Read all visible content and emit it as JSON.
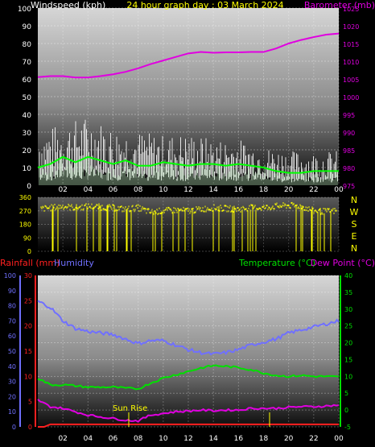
{
  "chart_data": [
    {
      "type": "line",
      "title": "24 hour graph day : 03 March 2024",
      "left_axis_label": "Windspeed (kph)",
      "right_axis_label": "Barometer (mb)",
      "left_ticks": [
        "0",
        "10",
        "20",
        "30",
        "40",
        "50",
        "60",
        "70",
        "80",
        "90",
        "100"
      ],
      "right_ticks": [
        "975",
        "980",
        "985",
        "990",
        "995",
        "1000",
        "1005",
        "1010",
        "1015",
        "1020",
        "1025"
      ],
      "x_ticks": [
        "02",
        "04",
        "06",
        "08",
        "10",
        "12",
        "14",
        "16",
        "18",
        "20",
        "22",
        "00"
      ],
      "ylim_left": [
        0,
        100
      ],
      "ylim_right": [
        975,
        1025
      ],
      "series": [
        {
          "name": "Barometer (mb)",
          "color": "#e000e0",
          "x": [
            0,
            1,
            2,
            3,
            4,
            5,
            6,
            7,
            8,
            9,
            10,
            11,
            12,
            13,
            14,
            15,
            16,
            17,
            18,
            19,
            20,
            21,
            22,
            23,
            24
          ],
          "y": [
            1005.5,
            1005.8,
            1005.8,
            1005.4,
            1005.4,
            1005.8,
            1006.3,
            1007.0,
            1008.0,
            1009.2,
            1010.2,
            1011.2,
            1012.2,
            1012.6,
            1012.4,
            1012.5,
            1012.5,
            1012.6,
            1012.6,
            1013.6,
            1015.0,
            1016.0,
            1016.8,
            1017.5,
            1017.8
          ]
        },
        {
          "color": "#ffffff",
          "x": [
            0,
            2,
            4,
            6,
            8,
            10,
            12,
            14,
            16,
            18,
            20,
            22,
            24
          ],
          "y": [
            28,
            32,
            36,
            30,
            28,
            26,
            27,
            24,
            24,
            20,
            18,
            17,
            18
          ]
        },
        {
          "color": "#00ff00",
          "x": [
            0,
            1,
            2,
            3,
            4,
            5,
            6,
            7,
            8,
            9,
            10,
            11,
            12,
            13,
            14,
            15,
            16,
            17,
            18,
            19,
            20,
            21,
            22,
            23,
            24
          ],
          "y": [
            10,
            12,
            16,
            13,
            16,
            14,
            12,
            14,
            11,
            11,
            13,
            12,
            11,
            12,
            12,
            11,
            12,
            11,
            10,
            8,
            7,
            7,
            8,
            8,
            8
          ]
        }
      ]
    },
    {
      "type": "scatter",
      "side_labels": [
        "N",
        "W",
        "S",
        "E",
        "N"
      ],
      "left_ticks": [
        "360",
        "270",
        "180",
        "90",
        "0"
      ],
      "x_ticks": [
        "02",
        "04",
        "06",
        "08",
        "10",
        "12",
        "14",
        "16",
        "18",
        "20",
        "22",
        "00"
      ],
      "ylim": [
        0,
        360
      ],
      "series": [
        {
          "color": "#ffff00",
          "x": [
            0,
            1,
            2,
            3,
            4,
            5,
            6,
            7,
            8,
            9,
            10,
            11,
            12,
            13,
            14,
            15,
            16,
            17,
            18,
            19,
            20,
            21,
            22,
            23,
            24
          ],
          "y": [
            280,
            290,
            300,
            290,
            300,
            295,
            290,
            280,
            290,
            260,
            270,
            275,
            270,
            280,
            290,
            285,
            280,
            290,
            290,
            300,
            305,
            300,
            270,
            265,
            270
          ]
        }
      ]
    },
    {
      "type": "line",
      "rainfall_label": "Rainfall (mm)",
      "humidity_label": "Humidity",
      "temperature_label": "Temperature (°C)",
      "dewpoint_label": "Dew Point (°C)",
      "annotation": "Sun Rise",
      "humidity_ticks": [
        "0",
        "10",
        "20",
        "30",
        "40",
        "50",
        "60",
        "70",
        "80",
        "90",
        "100"
      ],
      "rain_ticks": [
        "0",
        "5",
        "10",
        "15",
        "20",
        "25",
        "30"
      ],
      "temp_ticks": [
        "-5",
        "0",
        "5",
        "10",
        "15",
        "20",
        "25",
        "30",
        "35",
        "40"
      ],
      "x_ticks": [
        "02",
        "04",
        "06",
        "08",
        "10",
        "12",
        "14",
        "16",
        "18",
        "20",
        "22",
        "00"
      ],
      "ylim_humidity": [
        0,
        100
      ],
      "ylim_rain": [
        0,
        30
      ],
      "ylim_temp": [
        -5,
        40
      ],
      "series": [
        {
          "color": "#7070ff",
          "x": [
            0,
            1,
            2,
            3,
            4,
            5,
            6,
            7,
            8,
            9,
            10,
            11,
            12,
            13,
            14,
            15,
            16,
            17,
            18,
            19,
            20,
            21,
            22,
            23,
            24
          ],
          "y": [
            83,
            79,
            70,
            65,
            63,
            62,
            61,
            58,
            55,
            57,
            57,
            54,
            51,
            49,
            48,
            49,
            51,
            54,
            56,
            58,
            62,
            64,
            66,
            68,
            70
          ]
        },
        {
          "color": "#00e000",
          "x": [
            0,
            1,
            2,
            3,
            4,
            5,
            6,
            7,
            8,
            9,
            10,
            11,
            12,
            13,
            14,
            15,
            16,
            17,
            18,
            19,
            20,
            21,
            22,
            23,
            24
          ],
          "y": [
            9.5,
            7.5,
            7.5,
            7.2,
            6.8,
            6.8,
            6.8,
            6.5,
            6.3,
            8.0,
            9.5,
            10.5,
            11.5,
            12.5,
            13.2,
            13.0,
            12.6,
            12.0,
            11.0,
            10.3,
            10.0,
            10.3,
            10.0,
            10.0,
            9.8
          ]
        },
        {
          "color": "#e000e0",
          "x": [
            0,
            1,
            2,
            3,
            4,
            5,
            6,
            7,
            8,
            9,
            10,
            11,
            12,
            13,
            14,
            15,
            16,
            17,
            18,
            19,
            20,
            21,
            22,
            23,
            24
          ],
          "y": [
            3.0,
            1.0,
            0.5,
            -0.5,
            -1.5,
            -2.0,
            -2.5,
            -3.0,
            -3.2,
            -1.5,
            -1.0,
            -0.5,
            -0.3,
            0.0,
            -0.2,
            0.0,
            0.0,
            0.5,
            0.5,
            0.5,
            0.8,
            1.0,
            1.0,
            1.2,
            1.5
          ]
        },
        {
          "color": "#ff2020",
          "x": [
            0,
            0.5,
            1,
            24
          ],
          "y": [
            0,
            0,
            0.5,
            0.5
          ]
        }
      ]
    }
  ]
}
